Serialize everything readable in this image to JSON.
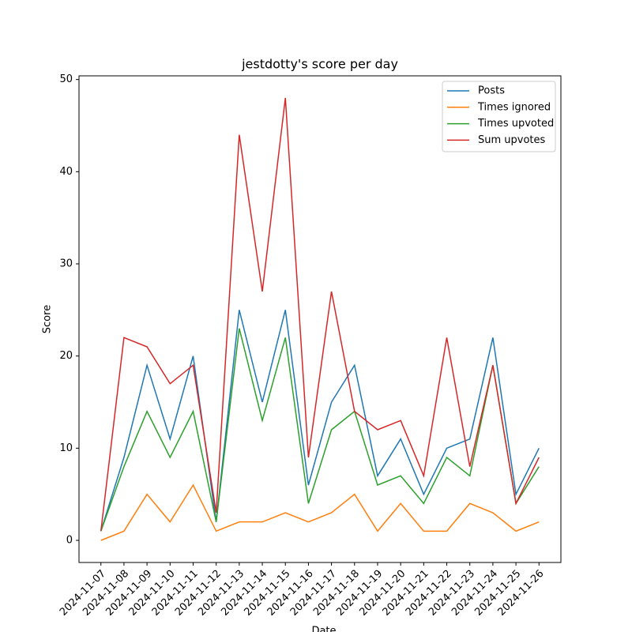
{
  "chart_data": {
    "type": "line",
    "title": "jestdotty's score per day",
    "x_label": "Date",
    "y_label": "Score",
    "x": [
      "2024-11-07",
      "2024-11-08",
      "2024-11-09",
      "2024-11-10",
      "2024-11-11",
      "2024-11-12",
      "2024-11-13",
      "2024-11-14",
      "2024-11-15",
      "2024-11-16",
      "2024-11-17",
      "2024-11-18",
      "2024-11-19",
      "2024-11-20",
      "2024-11-21",
      "2024-11-22",
      "2024-11-23",
      "2024-11-24",
      "2024-11-25",
      "2024-11-26"
    ],
    "series": [
      {
        "name": "Posts",
        "color": "#1f77b4",
        "values": [
          1,
          9,
          19,
          11,
          20,
          2,
          25,
          15,
          25,
          6,
          15,
          19,
          7,
          11,
          5,
          10,
          11,
          22,
          5,
          10
        ]
      },
      {
        "name": "Times ignored",
        "color": "#ff7f0e",
        "values": [
          0,
          1,
          5,
          2,
          6,
          1,
          2,
          2,
          3,
          2,
          3,
          5,
          1,
          4,
          1,
          1,
          4,
          3,
          1,
          2
        ]
      },
      {
        "name": "Times upvoted",
        "color": "#2ca02c",
        "values": [
          1,
          8,
          14,
          9,
          14,
          2,
          23,
          13,
          22,
          4,
          12,
          14,
          6,
          7,
          4,
          9,
          7,
          19,
          4,
          8
        ]
      },
      {
        "name": "Sum upvotes",
        "color": "#d62728",
        "values": [
          1,
          22,
          21,
          17,
          19,
          3,
          44,
          27,
          48,
          9,
          27,
          14,
          12,
          13,
          7,
          22,
          8,
          19,
          4,
          9
        ]
      }
    ],
    "ylim": [
      -2.4,
      50.4
    ],
    "yticks": [
      0,
      10,
      20,
      30,
      40,
      50
    ],
    "legend": "upper right"
  }
}
